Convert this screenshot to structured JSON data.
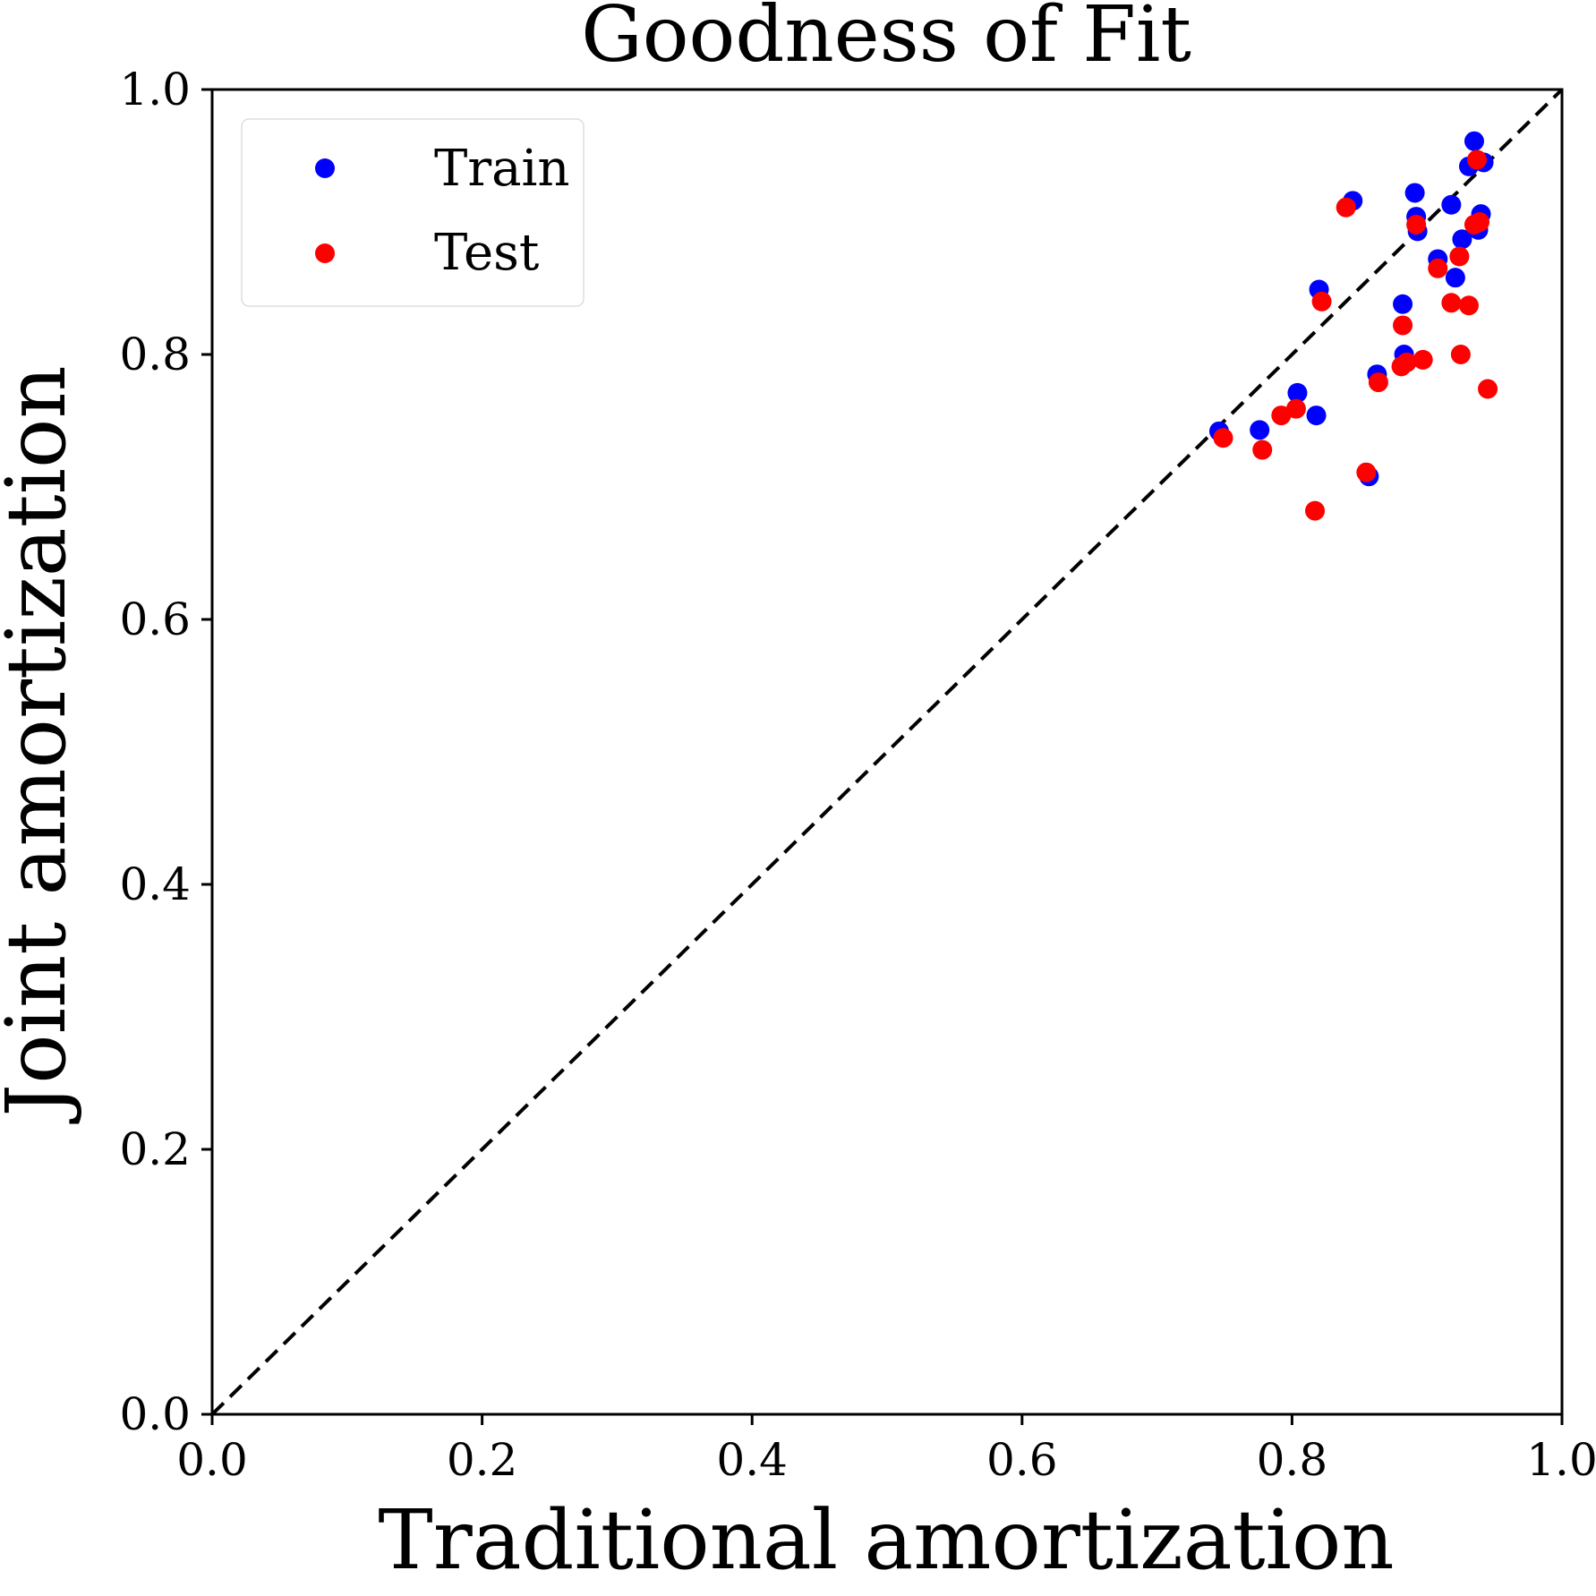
{
  "chart_data": {
    "type": "scatter",
    "title": "Goodness of Fit",
    "xlabel": "Traditional amortization",
    "ylabel": "Joint amortization",
    "xlim": [
      0.0,
      1.0
    ],
    "ylim": [
      0.0,
      1.0
    ],
    "xticks": [
      "0.0",
      "0.2",
      "0.4",
      "0.6",
      "0.8",
      "1.0"
    ],
    "yticks": [
      "0.0",
      "0.2",
      "0.4",
      "0.6",
      "0.8",
      "1.0"
    ],
    "grid": false,
    "legend_position": "top-left",
    "reference_line": {
      "style": "dashed",
      "color": "#000000",
      "from": [
        0.0,
        0.0
      ],
      "to": [
        1.0,
        1.0
      ]
    },
    "series": [
      {
        "name": "Train",
        "color": "#0000ff",
        "points": [
          [
            0.746,
            0.742
          ],
          [
            0.776,
            0.743
          ],
          [
            0.804,
            0.771
          ],
          [
            0.818,
            0.754
          ],
          [
            0.82,
            0.849
          ],
          [
            0.845,
            0.916
          ],
          [
            0.857,
            0.708
          ],
          [
            0.863,
            0.785
          ],
          [
            0.882,
            0.838
          ],
          [
            0.883,
            0.8
          ],
          [
            0.891,
            0.922
          ],
          [
            0.892,
            0.904
          ],
          [
            0.893,
            0.893
          ],
          [
            0.908,
            0.872
          ],
          [
            0.918,
            0.913
          ],
          [
            0.921,
            0.858
          ],
          [
            0.926,
            0.887
          ],
          [
            0.931,
            0.942
          ],
          [
            0.935,
            0.961
          ],
          [
            0.938,
            0.894
          ],
          [
            0.94,
            0.906
          ],
          [
            0.942,
            0.945
          ]
        ]
      },
      {
        "name": "Test",
        "color": "#ff0000",
        "points": [
          [
            0.749,
            0.737
          ],
          [
            0.778,
            0.728
          ],
          [
            0.792,
            0.754
          ],
          [
            0.803,
            0.759
          ],
          [
            0.817,
            0.682
          ],
          [
            0.822,
            0.84
          ],
          [
            0.84,
            0.911
          ],
          [
            0.855,
            0.711
          ],
          [
            0.864,
            0.779
          ],
          [
            0.881,
            0.791
          ],
          [
            0.882,
            0.822
          ],
          [
            0.885,
            0.794
          ],
          [
            0.892,
            0.898
          ],
          [
            0.897,
            0.796
          ],
          [
            0.908,
            0.865
          ],
          [
            0.918,
            0.839
          ],
          [
            0.924,
            0.874
          ],
          [
            0.925,
            0.8
          ],
          [
            0.931,
            0.837
          ],
          [
            0.935,
            0.898
          ],
          [
            0.937,
            0.947
          ],
          [
            0.939,
            0.9
          ],
          [
            0.945,
            0.774
          ]
        ]
      }
    ]
  }
}
